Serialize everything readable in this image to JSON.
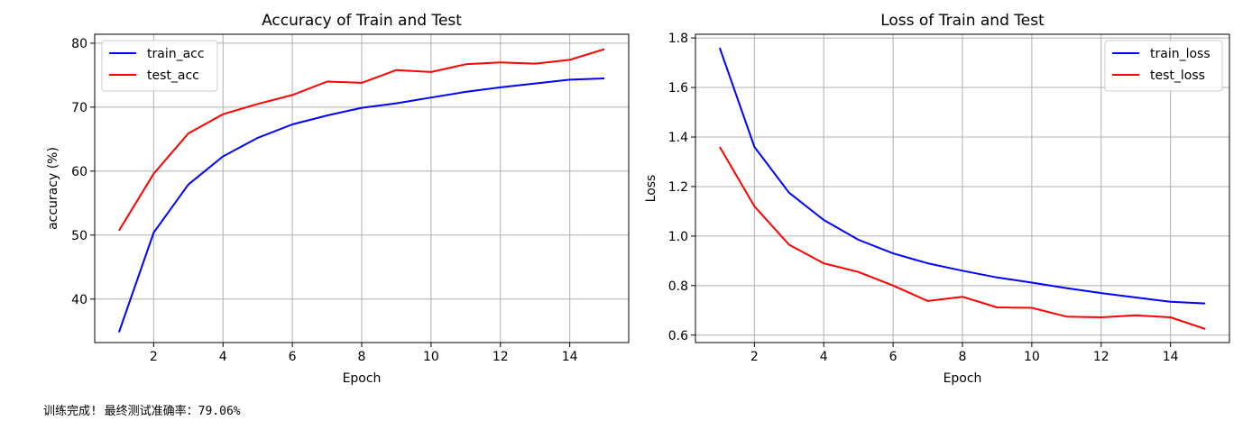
{
  "chart_data": [
    {
      "type": "line",
      "title": "Accuracy of Train and Test",
      "xlabel": "Epoch",
      "ylabel": "accuracy (%)",
      "x": [
        1,
        2,
        3,
        4,
        5,
        6,
        7,
        8,
        9,
        10,
        11,
        12,
        13,
        14,
        15
      ],
      "xlim": [
        0.3,
        15.7
      ],
      "ylim": [
        33.2,
        81.4
      ],
      "xticks": [
        2,
        4,
        6,
        8,
        10,
        12,
        14
      ],
      "yticks": [
        40,
        50,
        60,
        70,
        80
      ],
      "grid": true,
      "legend_position": "top-left",
      "series": [
        {
          "name": "train_acc",
          "color": "#0000ff",
          "values": [
            34.8,
            50.4,
            57.9,
            62.3,
            65.2,
            67.3,
            68.7,
            69.9,
            70.6,
            71.5,
            72.4,
            73.1,
            73.7,
            74.3,
            74.5
          ]
        },
        {
          "name": "test_acc",
          "color": "#ff0000",
          "values": [
            50.7,
            59.6,
            65.9,
            68.9,
            70.5,
            71.9,
            74.0,
            73.8,
            75.8,
            75.5,
            76.7,
            77.0,
            76.8,
            77.4,
            79.06
          ]
        }
      ]
    },
    {
      "type": "line",
      "title": "Loss of Train and Test",
      "xlabel": "Epoch",
      "ylabel": "Loss",
      "x": [
        1,
        2,
        3,
        4,
        5,
        6,
        7,
        8,
        9,
        10,
        11,
        12,
        13,
        14,
        15
      ],
      "xlim": [
        0.3,
        15.7
      ],
      "ylim": [
        0.57,
        1.815
      ],
      "xticks": [
        2,
        4,
        6,
        8,
        10,
        12,
        14
      ],
      "yticks": [
        0.6,
        0.8,
        1.0,
        1.2,
        1.4,
        1.6,
        1.8
      ],
      "grid": true,
      "legend_position": "top-right",
      "series": [
        {
          "name": "train_loss",
          "color": "#0000ff",
          "values": [
            1.76,
            1.36,
            1.175,
            1.065,
            0.985,
            0.93,
            0.89,
            0.86,
            0.833,
            0.812,
            0.79,
            0.77,
            0.752,
            0.735,
            0.728
          ]
        },
        {
          "name": "test_loss",
          "color": "#ff0000",
          "values": [
            1.36,
            1.12,
            0.965,
            0.89,
            0.855,
            0.8,
            0.738,
            0.755,
            0.712,
            0.71,
            0.675,
            0.672,
            0.68,
            0.672,
            0.625
          ]
        }
      ]
    }
  ],
  "status": {
    "message": "训练完成! 最终测试准确率：79.06%"
  }
}
